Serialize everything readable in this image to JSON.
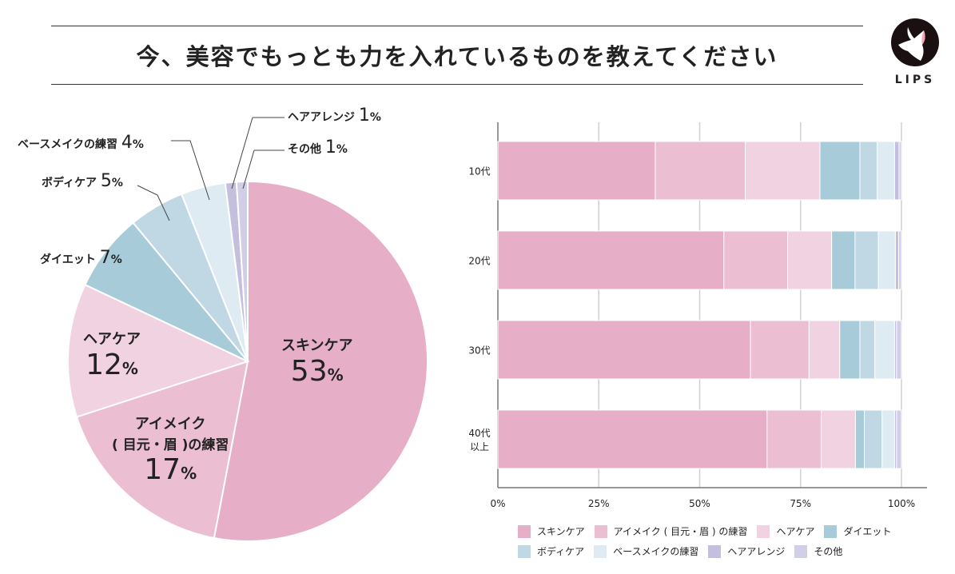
{
  "title": "今、美容でもっとも力を入れているものを教えてください",
  "logo_text": "LIPS",
  "colors": {
    "skincare": "#e6afc7",
    "eyemake": "#ebbed2",
    "haircare": "#f1d2e0",
    "diet": "#a8cbd9",
    "body": "#c0d7e4",
    "base": "#deebf2",
    "hairarrange": "#c3bfdd",
    "other": "#d1cee7"
  },
  "chart_data": [
    {
      "type": "pie",
      "start": "12 o'clock",
      "direction": "clockwise",
      "slices": [
        {
          "key": "skincare",
          "label": "スキンケア",
          "value": 53,
          "display": "53"
        },
        {
          "key": "eyemake",
          "label": "アイメイク",
          "label2": "( 目元・眉 )の練習",
          "value": 17,
          "display": "17"
        },
        {
          "key": "haircare",
          "label": "ヘアケア",
          "value": 12,
          "display": "12"
        },
        {
          "key": "diet",
          "label": "ダイエット",
          "value": 7,
          "display": "7"
        },
        {
          "key": "body",
          "label": "ボディケア",
          "value": 5,
          "display": "5"
        },
        {
          "key": "base",
          "label": "ベースメイクの練習",
          "value": 4,
          "display": "4"
        },
        {
          "key": "hairarrange",
          "label": "ヘアアレンジ",
          "value": 1,
          "display": "1"
        },
        {
          "key": "other",
          "label": "その他",
          "value": 1,
          "display": "1"
        }
      ],
      "unit": "%"
    },
    {
      "type": "bar",
      "orientation": "horizontal",
      "stacked": true,
      "xlim": [
        0,
        100
      ],
      "ticks": [
        "0%",
        "25%",
        "50%",
        "75%",
        "100%"
      ],
      "grid": true,
      "categories": [
        "10代",
        "20代",
        "30代",
        "40代\n以上"
      ],
      "series": [
        {
          "name": "スキンケア",
          "key": "skincare",
          "values": [
            39.0,
            56.0,
            62.6,
            66.7
          ]
        },
        {
          "name": "アイメイク ( 目元・眉 ) の練習",
          "key": "eyemake",
          "values": [
            22.3,
            15.8,
            14.5,
            13.4
          ]
        },
        {
          "name": "ヘアケア",
          "key": "haircare",
          "values": [
            18.5,
            10.9,
            7.6,
            8.5
          ]
        },
        {
          "name": "ダイエット",
          "key": "diet",
          "values": [
            9.9,
            5.8,
            5.0,
            2.2
          ]
        },
        {
          "name": "ボディケア",
          "key": "body",
          "values": [
            4.3,
            5.8,
            3.7,
            4.4
          ]
        },
        {
          "name": "ベースメイクの練習",
          "key": "base",
          "values": [
            4.3,
            4.2,
            4.9,
            3.1
          ]
        },
        {
          "name": "ヘアアレンジ",
          "key": "hairarrange",
          "values": [
            1.1,
            0.8,
            0.5,
            0.5
          ]
        },
        {
          "name": "その他",
          "key": "other",
          "values": [
            0.6,
            0.7,
            1.2,
            1.2
          ]
        }
      ],
      "legend": "bottom"
    }
  ]
}
